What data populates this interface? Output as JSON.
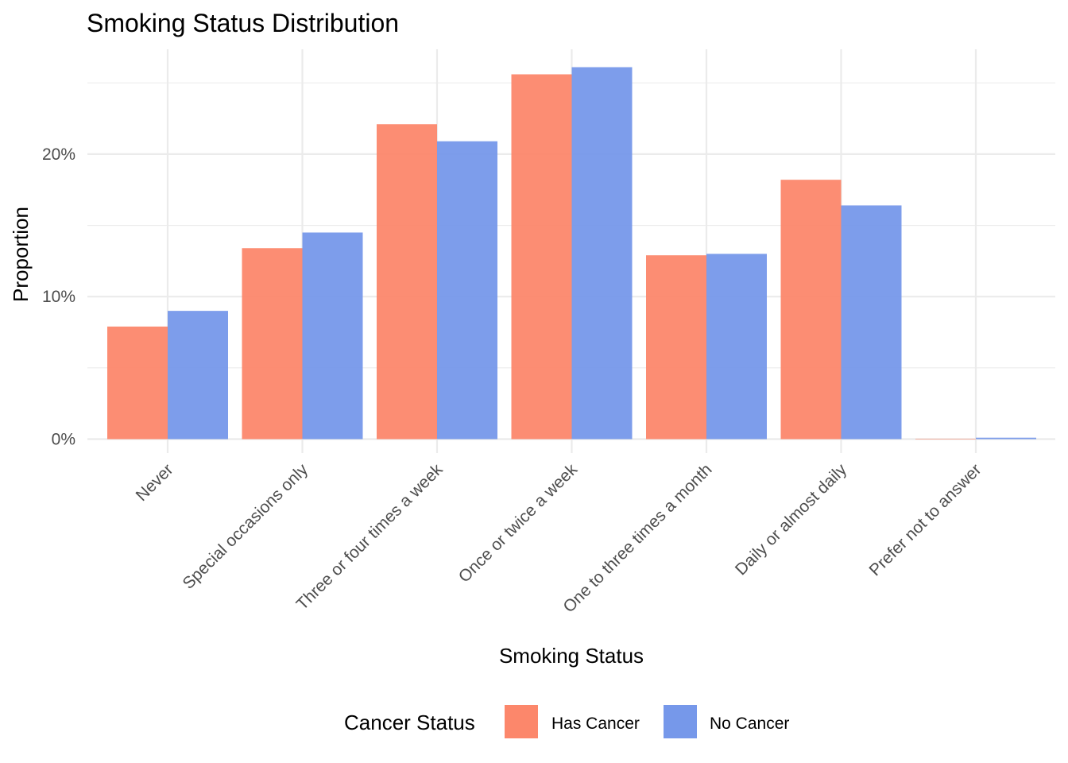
{
  "chart_data": {
    "type": "bar",
    "title": "Smoking Status Distribution",
    "xlabel": "Smoking Status",
    "ylabel": "Proportion",
    "ylim": [
      0,
      0.27
    ],
    "yticks": [
      0,
      0.1,
      0.2
    ],
    "ytick_labels": [
      "0%",
      "10%",
      "20%"
    ],
    "grid": true,
    "categories": [
      "Never",
      "Special occasions only",
      "Three or four times a week",
      "Once or twice a week",
      "One to three times a month",
      "Daily or almost daily",
      "Prefer not to answer"
    ],
    "series": [
      {
        "name": "Has Cancer",
        "color": "#FC876B",
        "values": [
          0.079,
          0.134,
          0.221,
          0.256,
          0.129,
          0.182,
          0.0003
        ]
      },
      {
        "name": "No Cancer",
        "color": "#7698EA",
        "values": [
          0.09,
          0.145,
          0.209,
          0.261,
          0.13,
          0.164,
          0.001
        ]
      }
    ],
    "legend": {
      "title": "Cancer Status",
      "position": "bottom"
    }
  }
}
